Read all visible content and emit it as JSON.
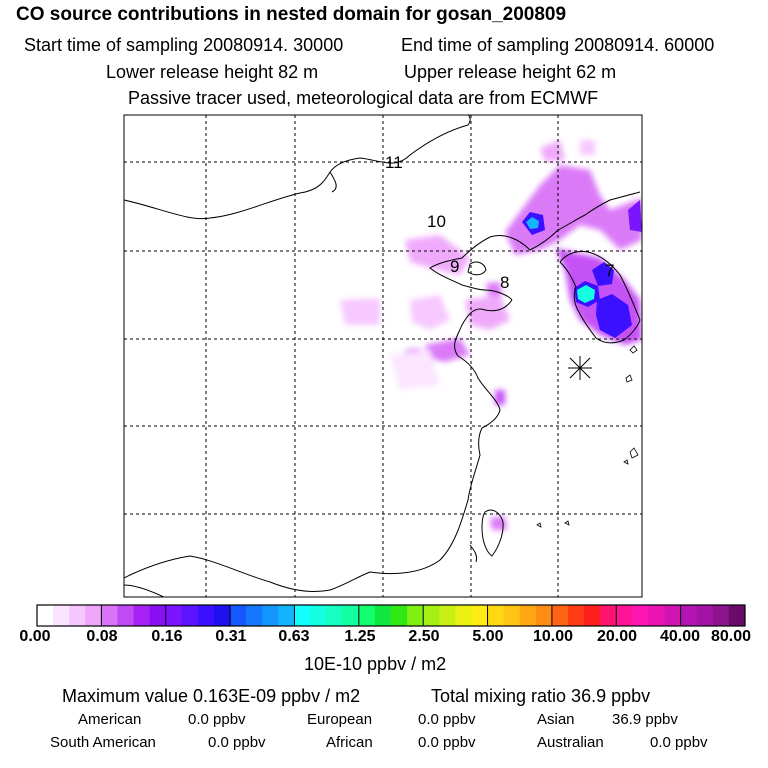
{
  "header": {
    "title": "CO  source contributions in nested domain for gosan_200809",
    "start_time": "Start time of sampling 20080914. 30000",
    "end_time": "End time of sampling 20080914. 60000",
    "lower_release": "Lower release height   82 m",
    "upper_release": "Upper release height   62 m",
    "tracer_note": "Passive tracer used, meteorological data are from ECMWF"
  },
  "map": {
    "region_labels": [
      "11",
      "10",
      "9",
      "8",
      "7"
    ],
    "receptor_marker": "receptor-star"
  },
  "colorbar": {
    "tick_labels": [
      "0.00",
      "0.08",
      "0.16",
      "0.31",
      "0.63",
      "1.25",
      "2.50",
      "5.00",
      "10.00",
      "20.00",
      "40.00",
      "80.00"
    ],
    "unit": "10E-10 ppbv / m2",
    "colors": [
      "#ffffff",
      "#fbe4ff",
      "#f6c6ff",
      "#efa6fb",
      "#d973f7",
      "#c24af5",
      "#a723f5",
      "#8a0ff5",
      "#7b14ff",
      "#5a14ff",
      "#3a10ff",
      "#2010f0",
      "#1458ff",
      "#1678ff",
      "#1496ff",
      "#14b4ff",
      "#10ffff",
      "#14ffe0",
      "#14ffc0",
      "#14ffa0",
      "#14ff70",
      "#10e840",
      "#30e814",
      "#80f014",
      "#a4f014",
      "#c8f014",
      "#e8f014",
      "#ffec14",
      "#ffd814",
      "#ffc414",
      "#ffa814",
      "#ff8c14",
      "#ff6414",
      "#ff3c14",
      "#ff1e1e",
      "#ff1470",
      "#ff1496",
      "#ff14b4",
      "#e814b4",
      "#d014b4",
      "#b414b4",
      "#a414a4",
      "#8c148c",
      "#6a0a6a"
    ]
  },
  "summary": {
    "max_label": "Maximum value  0.163E-09 ppbv / m2",
    "total_label": "Total mixing ratio       36.9 ppbv",
    "american_label": "American",
    "american_value": "0.0 ppbv",
    "european_label": "European",
    "european_value": "0.0 ppbv",
    "asian_label": "Asian",
    "asian_value": "36.9 ppbv",
    "south_american_label": "South American",
    "south_american_value": "0.0 ppbv",
    "african_label": "African",
    "african_value": "0.0 ppbv",
    "australian_label": "Australian",
    "australian_value": "0.0 ppbv"
  }
}
